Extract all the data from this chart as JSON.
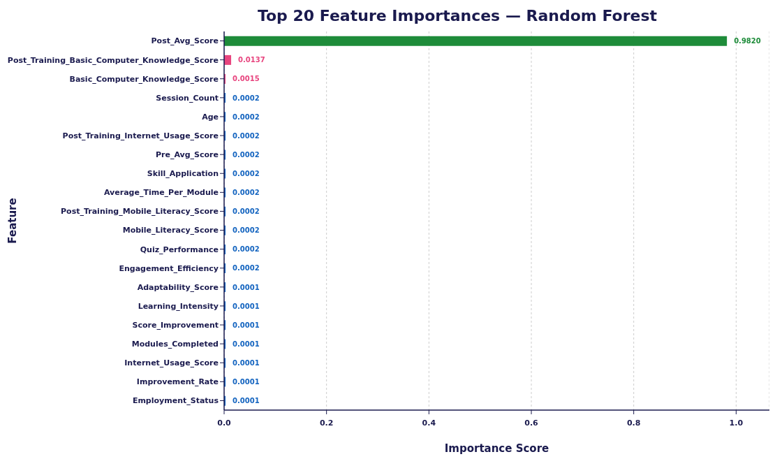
{
  "chart_data": {
    "type": "bar",
    "orientation": "horizontal",
    "title": "Top 20 Feature Importances — Random Forest",
    "xlabel": "Importance Score",
    "ylabel": "Feature",
    "categories": [
      "Post_Avg_Score",
      "Post_Training_Basic_Computer_Knowledge_Score",
      "Basic_Computer_Knowledge_Score",
      "Session_Count",
      "Age",
      "Post_Training_Internet_Usage_Score",
      "Pre_Avg_Score",
      "Skill_Application",
      "Average_Time_Per_Module",
      "Post_Training_Mobile_Literacy_Score",
      "Mobile_Literacy_Score",
      "Quiz_Performance",
      "Engagement_Efficiency",
      "Adaptability_Score",
      "Learning_Intensity",
      "Score_Improvement",
      "Modules_Completed",
      "Internet_Usage_Score",
      "Improvement_Rate",
      "Employment_Status"
    ],
    "values": [
      0.982,
      0.0137,
      0.0015,
      0.0002,
      0.0002,
      0.0002,
      0.0002,
      0.0002,
      0.0002,
      0.0002,
      0.0002,
      0.0002,
      0.0002,
      0.0001,
      0.0001,
      0.0001,
      0.0001,
      0.0001,
      0.0001,
      0.0001
    ],
    "value_labels": [
      "0.9820",
      "0.0137",
      "0.0015",
      "0.0002",
      "0.0002",
      "0.0002",
      "0.0002",
      "0.0002",
      "0.0002",
      "0.0002",
      "0.0002",
      "0.0002",
      "0.0002",
      "0.0001",
      "0.0001",
      "0.0001",
      "0.0001",
      "0.0001",
      "0.0001",
      "0.0001"
    ],
    "colors": [
      "#1e8c3a",
      "#e8457f",
      "#e8457f",
      "#1565c0",
      "#1565c0",
      "#1565c0",
      "#1565c0",
      "#1565c0",
      "#1565c0",
      "#1565c0",
      "#1565c0",
      "#1565c0",
      "#1565c0",
      "#1565c0",
      "#1565c0",
      "#1565c0",
      "#1565c0",
      "#1565c0",
      "#1565c0",
      "#1565c0"
    ],
    "xlim": [
      0,
      1.065
    ],
    "xticks": [
      {
        "value": 0,
        "label": "0.0"
      },
      0.2,
      0.4,
      0.6,
      0.8,
      {
        "value": 1,
        "label": "1.0"
      }
    ],
    "grid": "x"
  }
}
